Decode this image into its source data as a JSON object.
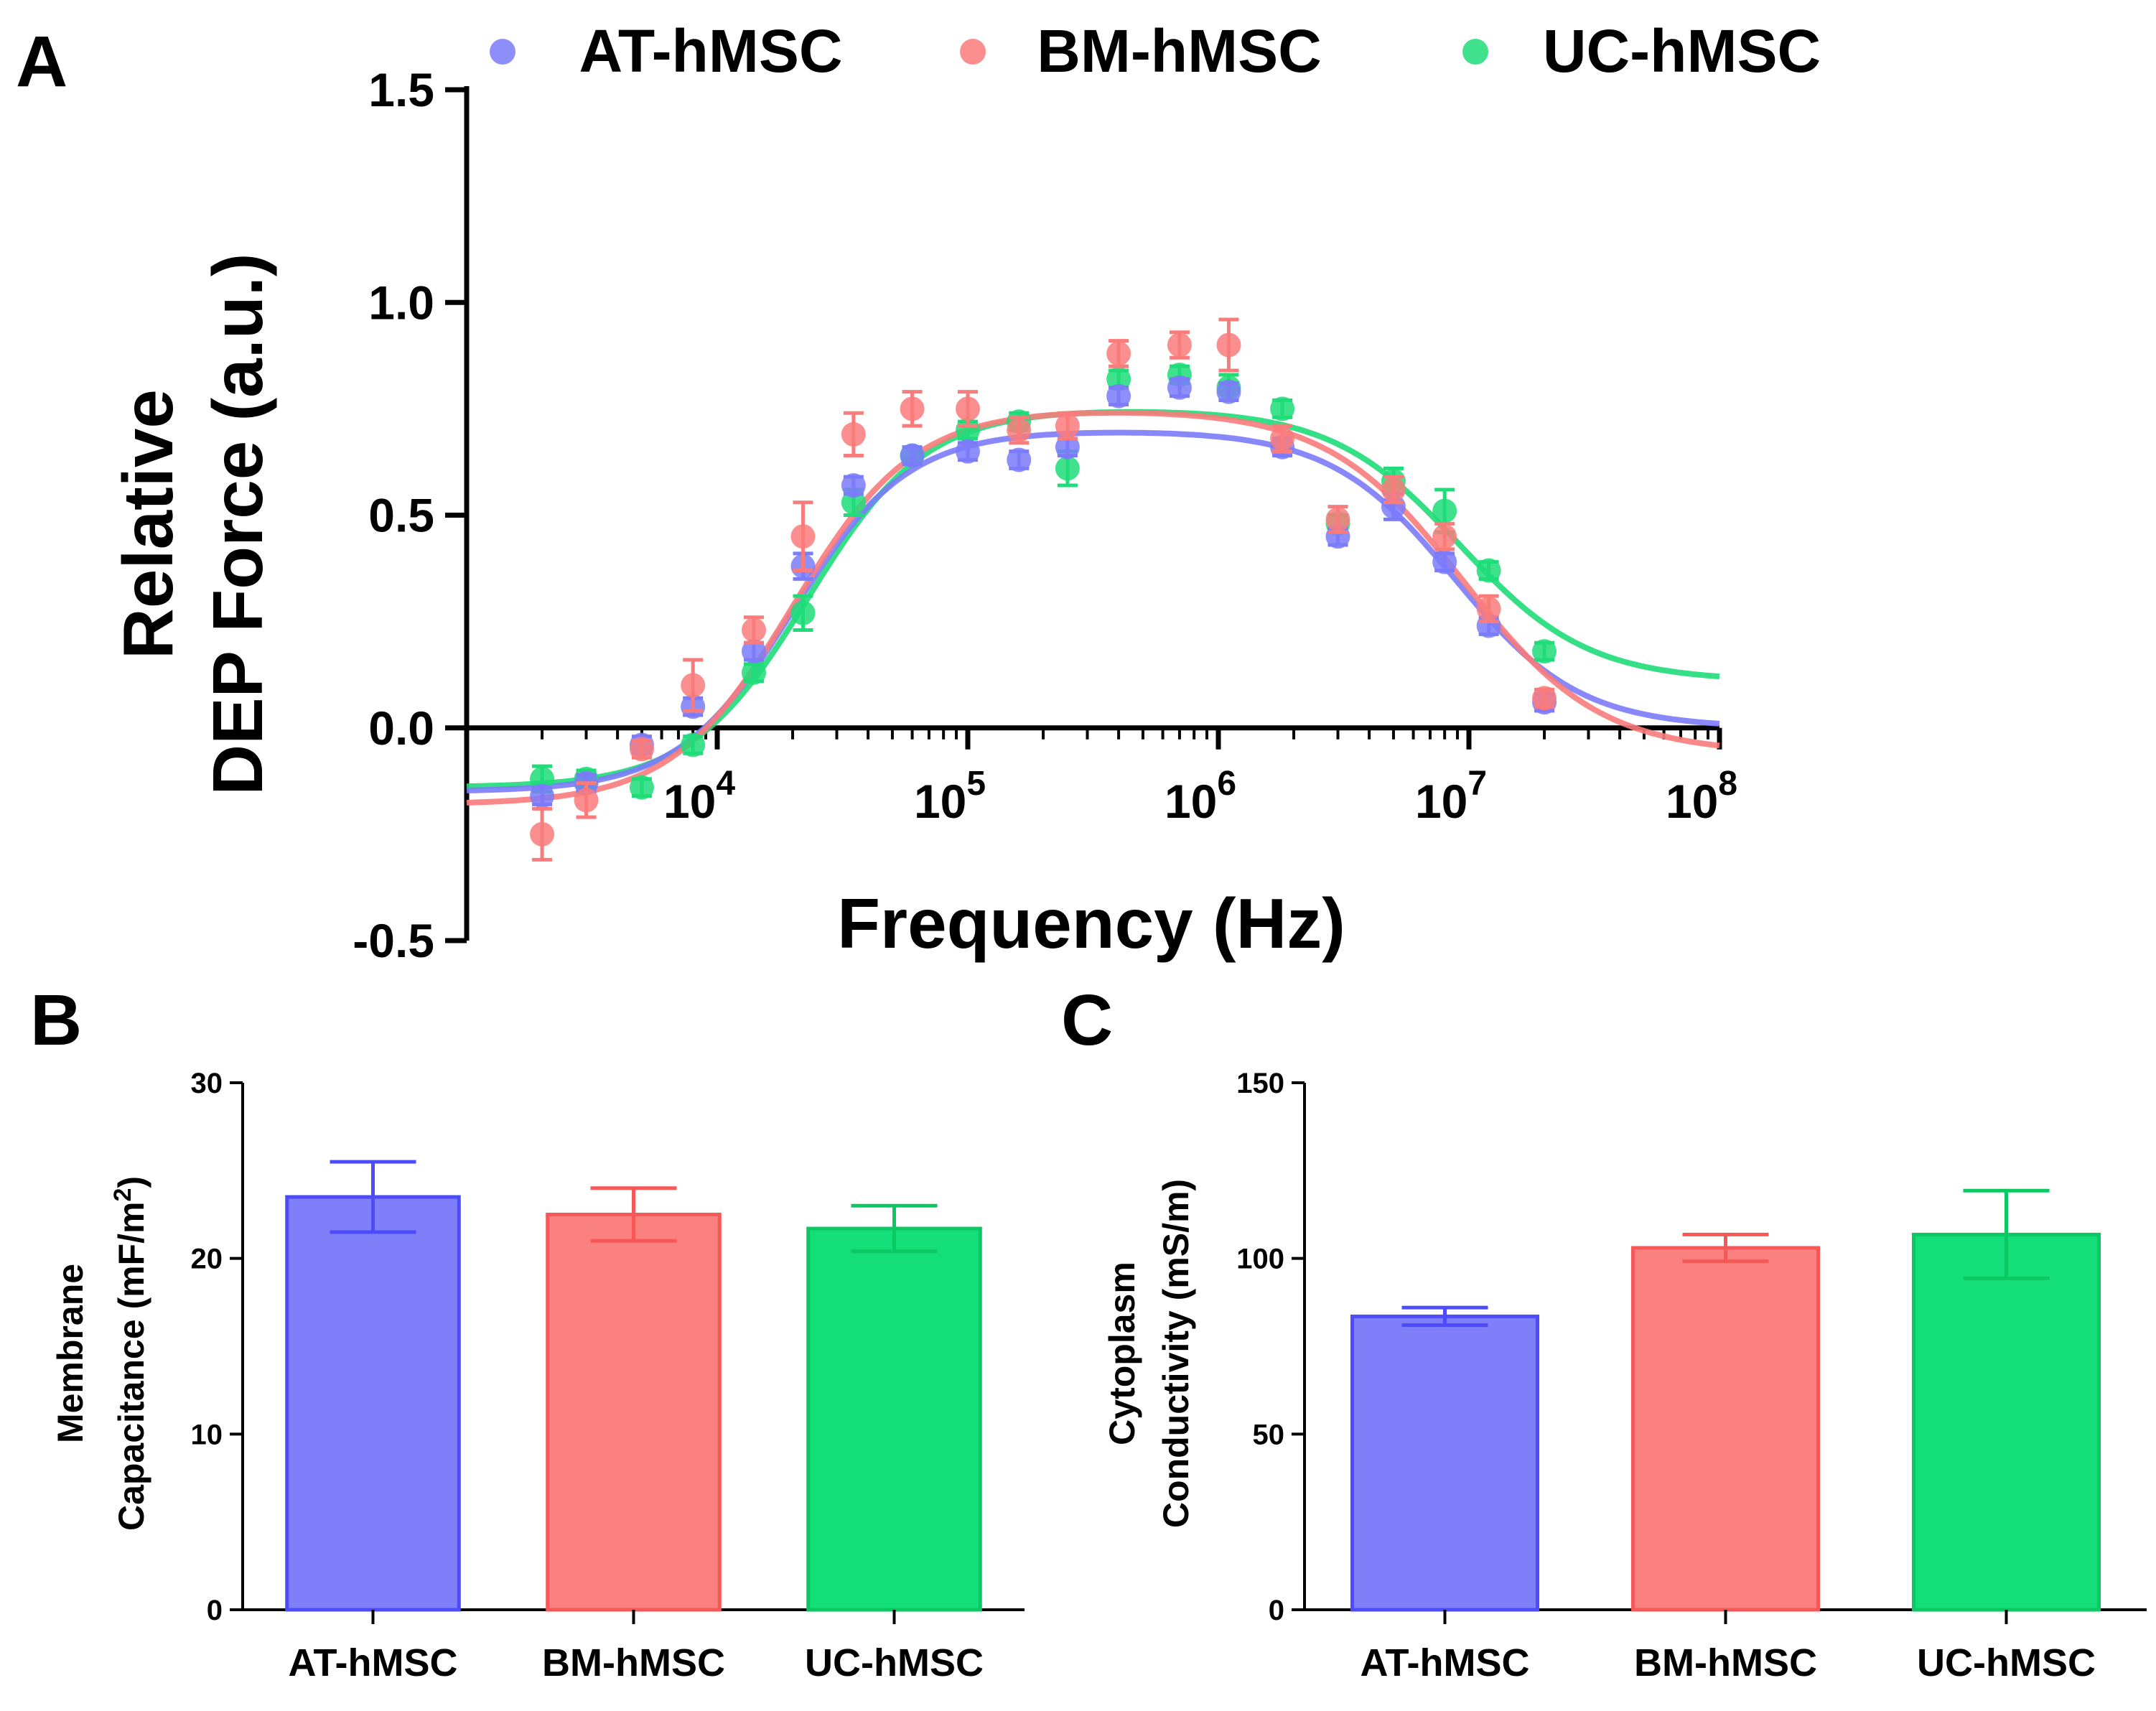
{
  "chart_data": [
    {
      "panel": "A",
      "type": "scatter",
      "xscale": "log",
      "xlabel": "Frequency (Hz)",
      "ylabel_line1": "Relative",
      "ylabel_line2": "DEP Force (a.u.)",
      "xlim": [
        1000,
        100000000
      ],
      "ylim": [
        -0.5,
        1.5
      ],
      "x_ticks": [
        {
          "value": 10000,
          "base": "10",
          "exp": "4"
        },
        {
          "value": 100000,
          "base": "10",
          "exp": "5"
        },
        {
          "value": 1000000,
          "base": "10",
          "exp": "6"
        },
        {
          "value": 10000000,
          "base": "10",
          "exp": "7"
        },
        {
          "value": 100000000,
          "base": "10",
          "exp": "8"
        }
      ],
      "y_ticks": [
        {
          "value": -0.5,
          "label": "-0.5"
        },
        {
          "value": 0.0,
          "label": "0.0"
        },
        {
          "value": 0.5,
          "label": "0.5"
        },
        {
          "value": 1.0,
          "label": "1.0"
        },
        {
          "value": 1.5,
          "label": "1.5"
        }
      ],
      "legend_position": "top",
      "x": [
        2000,
        3000,
        5000,
        8000,
        14000,
        22000,
        35000,
        60000,
        100000,
        160000,
        250000,
        400000,
        700000,
        1100000,
        1800000,
        3000000,
        5000000,
        8000000,
        12000000,
        20000000
      ],
      "series": [
        {
          "name": "AT-hMSC",
          "color": "#7b7bfa",
          "line_color": "#7b7bfa",
          "values": [
            -0.16,
            -0.13,
            -0.04,
            0.05,
            0.18,
            0.38,
            0.57,
            0.64,
            0.65,
            0.63,
            0.66,
            0.78,
            0.8,
            0.79,
            0.66,
            0.45,
            0.52,
            0.39,
            0.24,
            0.06
          ],
          "errors": [
            0.02,
            0.02,
            0.02,
            0.02,
            0.02,
            0.03,
            0.02,
            0.02,
            0.02,
            0.02,
            0.02,
            0.02,
            0.02,
            0.02,
            0.02,
            0.02,
            0.03,
            0.02,
            0.02,
            0.02
          ],
          "fit": {
            "low": -0.15,
            "mid": 0.7,
            "high": 0.0,
            "f1": 20000,
            "n1": 1.9,
            "f2": 8800000,
            "n2": 1.75
          }
        },
        {
          "name": "BM-hMSC",
          "color": "#fa7b7b",
          "line_color": "#fa7b7b",
          "values": [
            -0.25,
            -0.17,
            -0.05,
            0.1,
            0.23,
            0.45,
            0.69,
            0.75,
            0.75,
            0.7,
            0.71,
            0.88,
            0.9,
            0.9,
            0.68,
            0.49,
            0.56,
            0.45,
            0.28,
            0.07
          ],
          "errors": [
            0.06,
            0.04,
            0.02,
            0.06,
            0.03,
            0.08,
            0.05,
            0.04,
            0.04,
            0.03,
            0.03,
            0.03,
            0.03,
            0.06,
            0.03,
            0.03,
            0.03,
            0.03,
            0.03,
            0.02
          ],
          "fit": {
            "low": -0.18,
            "mid": 0.75,
            "high": -0.06,
            "f1": 20000,
            "n1": 1.8,
            "f2": 9500000,
            "n2": 1.6
          }
        },
        {
          "name": "UC-hMSC",
          "color": "#1edc78",
          "line_color": "#1edc78",
          "values": [
            -0.12,
            -0.12,
            -0.14,
            -0.04,
            0.13,
            0.27,
            0.53,
            0.64,
            0.7,
            0.72,
            0.61,
            0.82,
            0.83,
            0.8,
            0.75,
            0.48,
            0.58,
            0.51,
            0.37,
            0.18
          ],
          "errors": [
            0.03,
            0.02,
            0.02,
            0.02,
            0.02,
            0.04,
            0.03,
            0.02,
            0.02,
            0.02,
            0.04,
            0.02,
            0.02,
            0.03,
            0.02,
            0.02,
            0.03,
            0.05,
            0.02,
            0.02
          ],
          "fit": {
            "low": -0.14,
            "mid": 0.75,
            "high": 0.11,
            "f1": 23000,
            "n1": 1.85,
            "f2": 9200000,
            "n2": 1.7
          }
        }
      ],
      "overlap_point_color": "#6a4fd0",
      "overlap_fit_color": "#b8845a"
    },
    {
      "panel": "B",
      "type": "bar",
      "ylabel_line1": "Membrane",
      "ylabel_line2_prefix": "Capacitance (mF/m",
      "ylabel_line2_sup": "2",
      "ylabel_line2_suffix": ")",
      "ylim": [
        0,
        30
      ],
      "y_ticks": [
        {
          "value": 0,
          "label": "0"
        },
        {
          "value": 10,
          "label": "10"
        },
        {
          "value": 20,
          "label": "20"
        },
        {
          "value": 30,
          "label": "30"
        }
      ],
      "categories": [
        "AT-hMSC",
        "BM-hMSC",
        "UC-hMSC"
      ],
      "values": [
        23.5,
        22.5,
        21.7
      ],
      "errors": [
        2.0,
        1.5,
        1.3
      ],
      "colors": [
        "#7f7ffa",
        "#fb8080",
        "#14de78"
      ],
      "edge_colors": [
        "#4c4cfc",
        "#f65858",
        "#0bc862"
      ]
    },
    {
      "panel": "C",
      "type": "bar",
      "ylabel_line1": "Cytoplasm",
      "ylabel_line2": "Conductivity (mS/m)",
      "ylim": [
        0,
        150
      ],
      "y_ticks": [
        {
          "value": 0,
          "label": "0"
        },
        {
          "value": 50,
          "label": "50"
        },
        {
          "value": 100,
          "label": "100"
        },
        {
          "value": 150,
          "label": "150"
        }
      ],
      "categories": [
        "AT-hMSC",
        "BM-hMSC",
        "UC-hMSC"
      ],
      "values": [
        83.5,
        103.0,
        106.8
      ],
      "errors": [
        2.5,
        3.8,
        12.5
      ],
      "colors": [
        "#7f7ffa",
        "#fb8080",
        "#14de78"
      ],
      "edge_colors": [
        "#4c4cfc",
        "#f65858",
        "#0bc862"
      ]
    }
  ]
}
